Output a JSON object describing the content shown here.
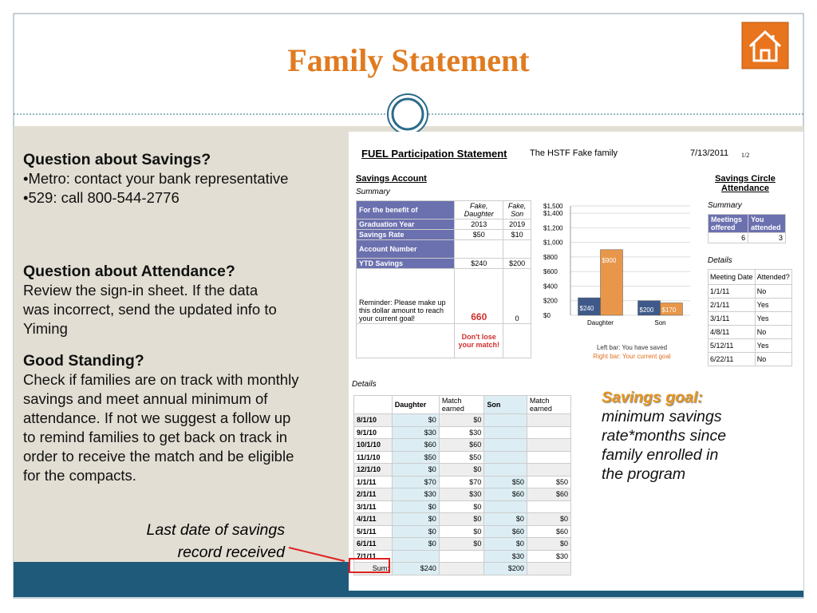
{
  "title": "Family Statement",
  "left": {
    "sections": [
      {
        "heading": "Question about Savings?",
        "lines": [
          "•Metro: contact your bank representative",
          "•529: call 800-544-2776"
        ]
      },
      {
        "heading": "Question about Attendance?",
        "lines": [
          "Review the sign-in sheet. If the data",
          "was incorrect, send the updated info to",
          "Yiming"
        ]
      },
      {
        "heading": "Good Standing?",
        "lines": [
          "Check if families are on track with monthly",
          "savings and meet annual minimum of",
          "attendance. If not we suggest a follow up",
          "to remind families to get back on track in",
          "order to receive the match and be eligible",
          "for the compacts."
        ]
      }
    ],
    "annotation": [
      "Last date of savings",
      "record received"
    ]
  },
  "statement": {
    "title": "FUEL Participation Statement",
    "family": "The HSTF Fake family",
    "date": "7/13/2011",
    "page": "1/2",
    "savings_account": {
      "title": "Savings Account",
      "subtitle": "Summary",
      "rows": [
        [
          "For the benefit of",
          "Fake, Daughter",
          "Fake, Son"
        ],
        [
          "Graduation Year",
          "2013",
          "2019"
        ],
        [
          "Savings Rate",
          "$50",
          "$10"
        ],
        [
          "Account Number",
          null,
          null
        ],
        [
          "YTD Savings",
          "$240",
          "$200"
        ],
        [
          "Reminder: Please make up this dollar amount to reach your current goal!",
          "660",
          "0"
        ],
        [
          null,
          "Don't lose your match!",
          null
        ]
      ]
    },
    "chart": {
      "type": "bar",
      "categories": [
        "Daughter",
        "Son"
      ],
      "series": [
        {
          "name": "Left bar: You have saved",
          "color": "#3f5a8a",
          "values": [
            240,
            200
          ],
          "value_labels": [
            "$240",
            "$200"
          ]
        },
        {
          "name": "Right bar: Your current goal",
          "color": "#e8974a",
          "values": [
            900,
            170
          ],
          "value_labels": [
            "$900",
            "$170"
          ]
        }
      ],
      "ylim": [
        0,
        1500
      ],
      "yticks": [
        {
          "value": 0,
          "label": "$0"
        },
        {
          "value": 200,
          "label": "$200"
        },
        {
          "value": 400,
          "label": "$400"
        },
        {
          "value": 600,
          "label": "$600"
        },
        {
          "value": 800,
          "label": "$800"
        },
        {
          "value": 1000,
          "label": "$1,000"
        },
        {
          "value": 1200,
          "label": "$1,200"
        },
        {
          "value": 1400,
          "label": "$1,400"
        },
        {
          "value": 1500,
          "label": "$1,500"
        }
      ]
    },
    "circle": {
      "title": "Savings Circle Attendance",
      "summary_title": "Summary",
      "summary_header": [
        "Meetings offered",
        "You attended"
      ],
      "summary_values": [
        "6",
        "3"
      ],
      "details_title": "Details",
      "details_header": [
        "Meeting Date",
        "Attended?"
      ],
      "details_rows": [
        [
          "1/1/11",
          "No"
        ],
        [
          "2/1/11",
          "Yes"
        ],
        [
          "3/1/11",
          "Yes"
        ],
        [
          "4/8/11",
          "No"
        ],
        [
          "5/12/11",
          "Yes"
        ],
        [
          "6/22/11",
          "No"
        ]
      ]
    },
    "details": {
      "title": "Details",
      "header": [
        null,
        "Daughter",
        "Match earned",
        "Son",
        "Match earned"
      ],
      "rows": [
        [
          "8/1/10",
          "$0",
          "$0",
          null,
          null
        ],
        [
          "9/1/10",
          "$30",
          "$30",
          null,
          null
        ],
        [
          "10/1/10",
          "$60",
          "$60",
          null,
          null
        ],
        [
          "11/1/10",
          "$50",
          "$50",
          null,
          null
        ],
        [
          "12/1/10",
          "$0",
          "$0",
          null,
          null
        ],
        [
          "1/1/11",
          "$70",
          "$70",
          "$50",
          "$50"
        ],
        [
          "2/1/11",
          "$30",
          "$30",
          "$60",
          "$60"
        ],
        [
          "3/1/11",
          "$0",
          "$0",
          null,
          null
        ],
        [
          "4/1/11",
          "$0",
          "$0",
          "$0",
          "$0"
        ],
        [
          "5/1/11",
          "$0",
          "$0",
          "$60",
          "$60"
        ],
        [
          "6/1/11",
          "$0",
          "$0",
          "$0",
          "$0"
        ],
        [
          "7/1/11",
          null,
          null,
          "$30",
          "$30"
        ],
        [
          "Sum:",
          "$240",
          null,
          "$200",
          null
        ]
      ]
    }
  },
  "note": {
    "heading": "Savings goal:",
    "lines": [
      "minimum savings",
      "rate*months since",
      "family enrolled in",
      "the program"
    ]
  }
}
